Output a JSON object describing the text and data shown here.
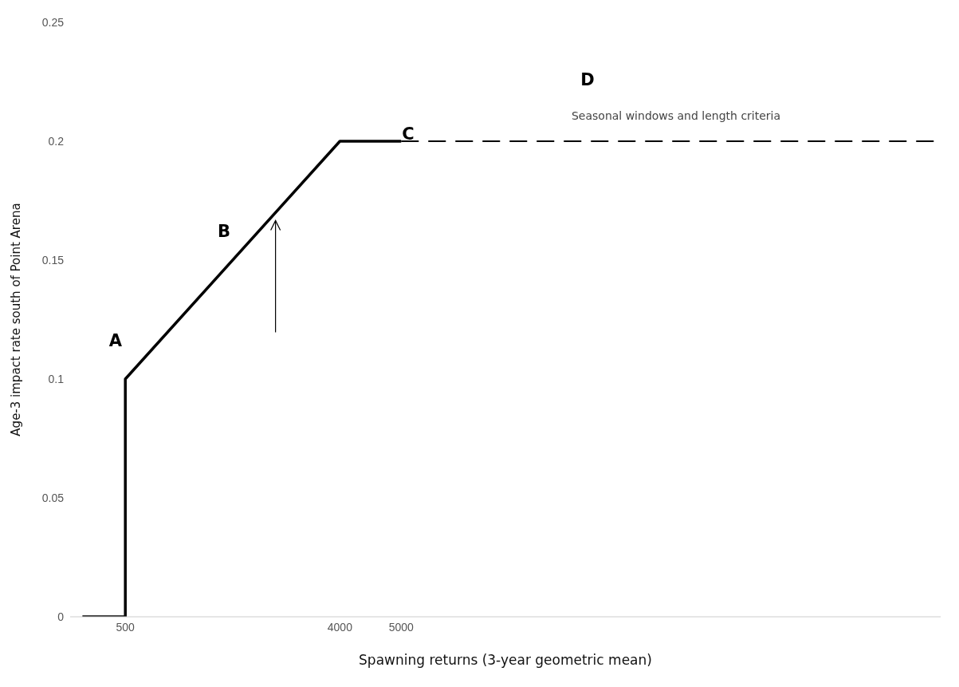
{
  "chart_data": {
    "type": "line",
    "xlabel": "Spawning returns (3-year geometric mean)",
    "ylabel": "Age-3 impact rate south of Point Arena",
    "xlim": [
      -400,
      13800
    ],
    "xticks": [
      500,
      4000,
      5000
    ],
    "ylim": [
      0,
      0.25
    ],
    "yticks": [
      0,
      0.05,
      0.1,
      0.15,
      0.2,
      0.25
    ],
    "grid": false,
    "legend": false,
    "marker": "none",
    "series": [
      {
        "color": "#000000",
        "line_style": "solid",
        "x": [
          -200,
          500,
          500,
          4000,
          5000
        ],
        "values": [
          0,
          0,
          0.1,
          0.2,
          0.2
        ]
      },
      {
        "color": "#000000",
        "line_style": "dashed",
        "x": [
          5000,
          13750
        ],
        "values": [
          0.2,
          0.2
        ]
      }
    ],
    "annotations": [
      "A",
      "B",
      "C",
      "D",
      "Seasonal windows and length criteria"
    ]
  }
}
